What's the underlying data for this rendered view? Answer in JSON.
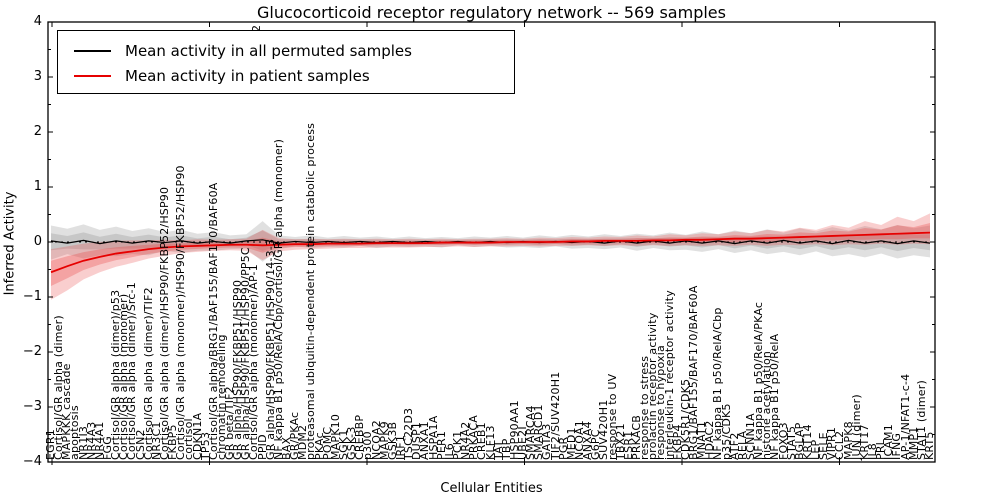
{
  "title": "Glucocorticoid receptor regulatory network -- 569 samples",
  "legend": {
    "items": [
      {
        "label": "Mean activity in all permuted samples",
        "color": "#000000"
      },
      {
        "label": "Mean activity in patient samples",
        "color": "#e60000"
      }
    ]
  },
  "axes": {
    "x": {
      "label": "Cellular Entities"
    },
    "y": {
      "label": "Inferred Activity",
      "ticks": [
        "4",
        "3",
        "2",
        "1",
        "0",
        "−1",
        "−2",
        "−3",
        "−4"
      ],
      "range": [
        -4,
        4
      ]
    }
  },
  "annotations": {
    "stray_tick_label": "2"
  },
  "colors": {
    "background": "#ffffff",
    "frame": "#000000",
    "permuted_line": "#000000",
    "patient_line": "#e60000",
    "permuted_band": "#909090",
    "patient_band": "#e84040"
  },
  "chart_data": {
    "type": "line",
    "title": "Glucocorticoid receptor regulatory network -- 569 samples",
    "xlabel": "Cellular Entities",
    "ylabel": "Inferred Activity",
    "ylim": [
      -4,
      4
    ],
    "grid": false,
    "legend_position": "upper left",
    "zero_reference_line": "dashed",
    "n_entities": 109,
    "categories": [
      "EGR1",
      "Cortisol/GR alpha (dimer)",
      "MAPKKK cascade",
      "apoptosis",
      "NR1I3",
      "NR4A3",
      "NR4A1",
      "FGG",
      "Cortisol/GR alpha (dimer)/p53",
      "Cortisol/GR alpha (monomer)",
      "Cortisol/GR alpha (dimer)/Src-1",
      "CSN2",
      "Cortisol/GR alpha (dimer)/TIF2",
      "NR3C1",
      "Cortisol/GR alpha (dimer)/HSP90/FKBP52/HSP90",
      "FKBP5",
      "Cortisol/GR alpha (monomer)/HSP90/FKBP52/HSP90",
      "cortisol",
      "CDKN1A",
      "TP53",
      "Cortisol/GR alpha/BRG1/BAF155/BAF170/BAF60A",
      "chromatin remodeling",
      "GR beta/TIF2",
      "GR alpha/HSP90/FKBP51/HSP90",
      "GR alpha/HSP90/FKBP51/HSP90/PP5C",
      "Cortisol/GR alpha (monomer)/AP-1",
      "PPID",
      "GR alpha/HSP90/FKBP51/HSP90/14-3-3",
      "NF kappa B1 p50/RelA/Cbp/cortisol/GR alpha (monomer)",
      "BAX",
      "GR/PKAc",
      "MDM2",
      "proteasomal ubiquitin-dependent protein catabolic process",
      "PKAc",
      "POMC",
      "MAPK10",
      "SGK1",
      "GSK-3",
      "CREBBP",
      "p300",
      "NCOA2",
      "MAPK9",
      "GSK3B",
      "IRF1",
      "TSC22D3",
      "DUSP1",
      "ANXA1",
      "HSPA1A",
      "PER1",
      "IL6",
      "PCK1",
      "NR4A2",
      "PRKACA",
      "CREB1",
      "KLF13",
      "TAT",
      "TBP",
      "HSP90AA1",
      "UBE2I",
      "SMARCA4",
      "SMARCD1",
      "GATA3",
      "TIF2/SUV420H1",
      "PGR",
      "MED1",
      "NCOA1",
      "ANXA4",
      "G6PC",
      "SUV420H1",
      "response to UV",
      "TBX21",
      "ESR1",
      "PRKACB",
      "response to stress",
      "prolactin receptor activity",
      "response to hypoxia",
      "interleukin-1 receptor activity",
      "FKBP4",
      "CDK5R1/CDK5",
      "BRG1/BAF155/BAF170/BAF60A",
      "MNAT1",
      "HDAC2",
      "NF kappa B1 p50/RelA/Cbp",
      "p35/CDK5",
      "ATF2",
      "RELA",
      "SCNN1A",
      "NF kappa B1 p50/RelA/PKAc",
      "histone acetylation",
      "NF kappa B1 p50/RelA",
      "FOXO3",
      "STAT5",
      "BGLAP",
      "KRT14",
      "LEP",
      "SELE",
      "VIPR1",
      "CCL2",
      "MAPK8",
      "JUN (dimer)",
      "KRT17",
      "IL8",
      "PRL",
      "ICAM1",
      "IFNG",
      "AP-1/NFAT1-c-4",
      "MMP1",
      "STAT1 (dimer)",
      "KRT5"
    ],
    "control_points": 55,
    "series": [
      {
        "name": "Mean activity in all permuted samples",
        "color": "#000000",
        "mean": [
          0.02,
          -0.02,
          0.03,
          -0.03,
          0.02,
          -0.02,
          0.02,
          -0.01,
          0.02,
          -0.02,
          0.01,
          -0.02,
          0.02,
          0.04,
          -0.02,
          0.01,
          -0.01,
          0.01,
          -0.01,
          0.01,
          -0.01,
          0.01,
          -0.01,
          0.01,
          -0.01,
          0.01,
          -0.01,
          0.01,
          -0.01,
          0.01,
          -0.01,
          0.01,
          -0.01,
          0.01,
          -0.02,
          0.02,
          -0.02,
          0.02,
          -0.02,
          0.02,
          -0.02,
          0.02,
          -0.03,
          0.02,
          -0.02,
          0.03,
          -0.02,
          0.02,
          -0.03,
          0.03,
          -0.02,
          0.02,
          -0.03,
          0.02,
          -0.02
        ],
        "band_hi": [
          0.3,
          0.24,
          0.32,
          0.22,
          0.28,
          0.2,
          0.25,
          0.18,
          0.22,
          0.15,
          0.18,
          0.12,
          0.14,
          0.38,
          0.12,
          0.09,
          0.12,
          0.08,
          0.11,
          0.08,
          0.1,
          0.07,
          0.1,
          0.07,
          0.09,
          0.07,
          0.1,
          0.08,
          0.11,
          0.08,
          0.12,
          0.09,
          0.13,
          0.1,
          0.14,
          0.11,
          0.15,
          0.12,
          0.17,
          0.13,
          0.19,
          0.14,
          0.21,
          0.16,
          0.23,
          0.17,
          0.25,
          0.19,
          0.27,
          0.21,
          0.29,
          0.23,
          0.31,
          0.25,
          0.3
        ],
        "band_lo": [
          -0.32,
          -0.22,
          -0.3,
          -0.24,
          -0.26,
          -0.22,
          -0.24,
          -0.16,
          -0.2,
          -0.16,
          -0.16,
          -0.13,
          -0.12,
          -0.36,
          -0.13,
          -0.08,
          -0.11,
          -0.09,
          -0.1,
          -0.07,
          -0.11,
          -0.08,
          -0.09,
          -0.08,
          -0.1,
          -0.06,
          -0.09,
          -0.07,
          -0.1,
          -0.09,
          -0.11,
          -0.08,
          -0.12,
          -0.11,
          -0.13,
          -0.1,
          -0.16,
          -0.11,
          -0.15,
          -0.14,
          -0.18,
          -0.13,
          -0.2,
          -0.15,
          -0.22,
          -0.18,
          -0.24,
          -0.17,
          -0.26,
          -0.22,
          -0.28,
          -0.21,
          -0.3,
          -0.24,
          -0.28
        ]
      },
      {
        "name": "Mean activity in patient samples",
        "color": "#e60000",
        "mean": [
          -0.55,
          -0.44,
          -0.34,
          -0.27,
          -0.21,
          -0.17,
          -0.13,
          -0.1,
          -0.08,
          -0.07,
          -0.06,
          -0.05,
          -0.05,
          -0.06,
          -0.05,
          -0.04,
          -0.04,
          -0.03,
          -0.03,
          -0.03,
          -0.02,
          -0.02,
          -0.02,
          -0.02,
          -0.01,
          -0.01,
          -0.01,
          -0.01,
          0.0,
          0.0,
          0.0,
          0.0,
          0.01,
          0.01,
          0.02,
          0.02,
          0.02,
          0.03,
          0.03,
          0.04,
          0.04,
          0.05,
          0.06,
          0.06,
          0.07,
          0.08,
          0.09,
          0.1,
          0.11,
          0.12,
          0.13,
          0.14,
          0.15,
          0.16,
          0.17
        ],
        "band_hi": [
          -0.13,
          -0.08,
          -0.03,
          0.0,
          0.02,
          0.03,
          0.03,
          0.04,
          0.03,
          0.05,
          0.04,
          0.05,
          0.06,
          0.22,
          0.07,
          0.05,
          0.06,
          0.05,
          0.06,
          0.05,
          0.06,
          0.05,
          0.06,
          0.05,
          0.06,
          0.05,
          0.06,
          0.06,
          0.07,
          0.06,
          0.08,
          0.07,
          0.09,
          0.08,
          0.1,
          0.09,
          0.12,
          0.1,
          0.14,
          0.12,
          0.16,
          0.14,
          0.19,
          0.16,
          0.22,
          0.19,
          0.26,
          0.22,
          0.31,
          0.26,
          0.38,
          0.31,
          0.46,
          0.38,
          0.52
        ],
        "band_lo": [
          -1.05,
          -0.88,
          -0.68,
          -0.55,
          -0.45,
          -0.38,
          -0.3,
          -0.25,
          -0.2,
          -0.18,
          -0.16,
          -0.15,
          -0.16,
          -0.33,
          -0.17,
          -0.14,
          -0.13,
          -0.12,
          -0.11,
          -0.11,
          -0.1,
          -0.1,
          -0.1,
          -0.09,
          -0.09,
          -0.08,
          -0.09,
          -0.08,
          -0.08,
          -0.07,
          -0.08,
          -0.07,
          -0.07,
          -0.06,
          -0.07,
          -0.06,
          -0.07,
          -0.06,
          -0.07,
          -0.06,
          -0.07,
          -0.06,
          -0.07,
          -0.05,
          -0.07,
          -0.05,
          -0.06,
          -0.04,
          -0.06,
          -0.04,
          -0.05,
          -0.03,
          -0.05,
          -0.03,
          -0.04
        ]
      }
    ]
  }
}
